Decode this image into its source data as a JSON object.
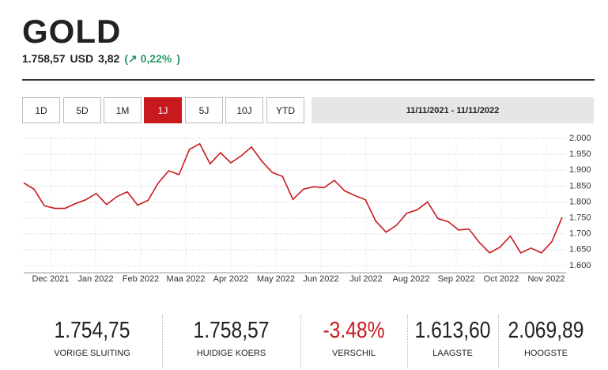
{
  "header": {
    "title": "GOLD",
    "price": "1.758,57",
    "currency": "USD",
    "change": "3,82",
    "change_pct": "0,22%"
  },
  "buttons": [
    "1D",
    "5D",
    "1M",
    "1J",
    "5J",
    "10J",
    "YTD"
  ],
  "date_range": "11/11/2021 - 11/11/2022",
  "chart_data": {
    "type": "line",
    "series": [
      {
        "name": "GOLD",
        "color": "#c8191e",
        "values": [
          1860,
          1840,
          1788,
          1780,
          1780,
          1795,
          1807,
          1827,
          1792,
          1817,
          1832,
          1790,
          1805,
          1860,
          1898,
          1886,
          1965,
          1983,
          1920,
          1955,
          1923,
          1945,
          1973,
          1928,
          1893,
          1880,
          1808,
          1840,
          1848,
          1845,
          1868,
          1835,
          1820,
          1807,
          1740,
          1705,
          1727,
          1765,
          1775,
          1800,
          1748,
          1738,
          1712,
          1715,
          1673,
          1640,
          1658,
          1693,
          1640,
          1655,
          1640,
          1675,
          1752
        ]
      }
    ],
    "xticks": [
      "Dec 2021",
      "Jan 2022",
      "Feb 2022",
      "Maa 2022",
      "Apr 2022",
      "May 2022",
      "Jun 2022",
      "Jul 2022",
      "Aug 2022",
      "Sep 2022",
      "Oct 2022",
      "Nov 2022"
    ],
    "ylim": [
      1580,
      2005
    ],
    "yticks": [
      {
        "value": 2000,
        "label": "2.000"
      },
      {
        "value": 1950,
        "label": "1.950"
      },
      {
        "value": 1900,
        "label": "1.900"
      },
      {
        "value": 1850,
        "label": "1.850"
      },
      {
        "value": 1800,
        "label": "1.800"
      },
      {
        "value": 1750,
        "label": "1.750"
      },
      {
        "value": 1700,
        "label": "1.700"
      },
      {
        "value": 1650,
        "label": "1.650"
      },
      {
        "value": 1600,
        "label": "1.600"
      }
    ],
    "grid": true
  },
  "stats": [
    {
      "value": "1.754,75",
      "label": "VORIGE SLUITING"
    },
    {
      "value": "1.758,57",
      "label": "HUIDIGE KOERS"
    },
    {
      "value": "-3.48%",
      "label": "VERSCHIL"
    },
    {
      "value": "1.613,60",
      "label": "LAAGSTE"
    },
    {
      "value": "2.069,89",
      "label": "HOOGSTE"
    }
  ]
}
